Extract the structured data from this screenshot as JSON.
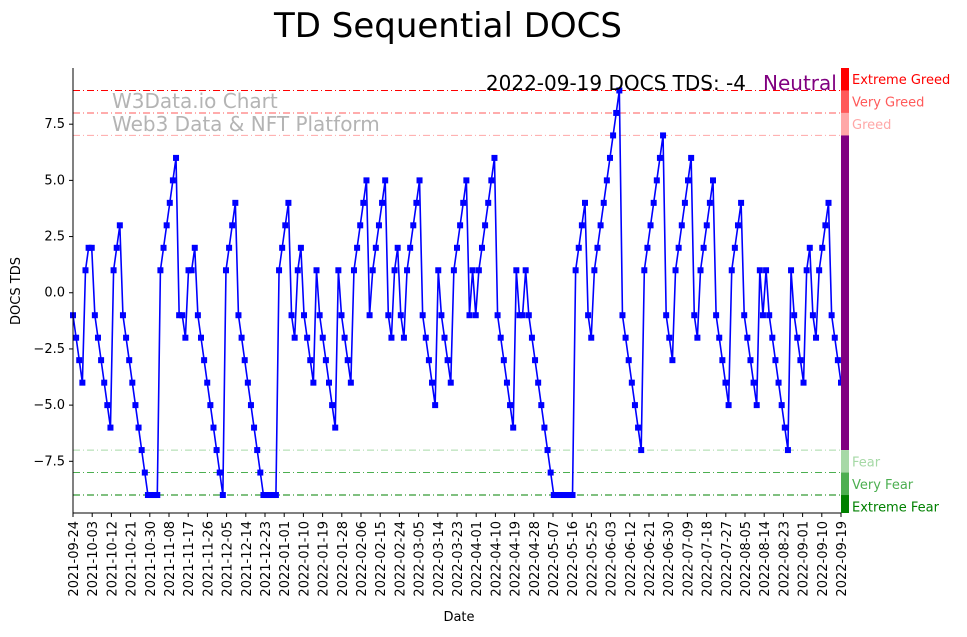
{
  "chart_data": {
    "type": "line",
    "title": "TD Sequential DOCS",
    "xlabel": "Date",
    "ylabel": "DOCS TDS",
    "ylim": [
      -9.8,
      10
    ],
    "yticks": [
      -7.5,
      -5.0,
      -2.5,
      0.0,
      2.5,
      5.0,
      7.5
    ],
    "ytick_labels": [
      "−7.5",
      "−5.0",
      "−2.5",
      "0.0",
      "2.5",
      "5.0",
      "7.5"
    ],
    "x_start": "2021-09-24",
    "x_end": "2022-09-19",
    "xtick_labels": [
      "2021-09-24",
      "2021-10-03",
      "2021-10-12",
      "2021-10-21",
      "2021-10-30",
      "2021-11-08",
      "2021-11-17",
      "2021-11-26",
      "2021-12-05",
      "2021-12-14",
      "2021-12-23",
      "2022-01-01",
      "2022-01-10",
      "2022-01-19",
      "2022-01-28",
      "2022-02-06",
      "2022-02-15",
      "2022-02-24",
      "2022-03-05",
      "2022-03-14",
      "2022-03-23",
      "2022-04-01",
      "2022-04-10",
      "2022-04-19",
      "2022-04-28",
      "2022-05-07",
      "2022-05-16",
      "2022-05-25",
      "2022-06-03",
      "2022-06-12",
      "2022-06-21",
      "2022-06-30",
      "2022-07-09",
      "2022-07-18",
      "2022-07-27",
      "2022-08-05",
      "2022-08-14",
      "2022-08-23",
      "2022-09-01",
      "2022-09-10",
      "2022-09-19"
    ],
    "series": [
      {
        "color": "#0000ff",
        "marker": "square",
        "values": [
          -1,
          -2,
          -3,
          -4,
          1,
          2,
          2,
          -1,
          -2,
          -3,
          -4,
          -5,
          -6,
          1,
          2,
          3,
          -1,
          -2,
          -3,
          -4,
          -5,
          -6,
          -7,
          -8,
          -9,
          -9,
          -9,
          -9,
          1,
          2,
          3,
          4,
          5,
          6,
          -1,
          -1,
          -2,
          1,
          1,
          2,
          -1,
          -2,
          -3,
          -4,
          -5,
          -6,
          -7,
          -8,
          -9,
          1,
          2,
          3,
          4,
          -1,
          -2,
          -3,
          -4,
          -5,
          -6,
          -7,
          -8,
          -9,
          -9,
          -9,
          -9,
          -9,
          1,
          2,
          3,
          4,
          -1,
          -2,
          1,
          2,
          -1,
          -2,
          -3,
          -4,
          1,
          -1,
          -2,
          -3,
          -4,
          -5,
          -6,
          1,
          -1,
          -2,
          -3,
          -4,
          1,
          2,
          3,
          4,
          5,
          -1,
          1,
          2,
          3,
          4,
          5,
          -1,
          -2,
          1,
          2,
          -1,
          -2,
          1,
          2,
          3,
          4,
          5,
          -1,
          -2,
          -3,
          -4,
          -5,
          1,
          -1,
          -2,
          -3,
          -4,
          1,
          2,
          3,
          4,
          5,
          -1,
          1,
          -1,
          1,
          2,
          3,
          4,
          5,
          6,
          -1,
          -2,
          -3,
          -4,
          -5,
          -6,
          1,
          -1,
          -1,
          1,
          -1,
          -2,
          -3,
          -4,
          -5,
          -6,
          -7,
          -8,
          -9,
          -9,
          -9,
          -9,
          -9,
          -9,
          -9,
          1,
          2,
          3,
          4,
          -1,
          -2,
          1,
          2,
          3,
          4,
          5,
          6,
          7,
          8,
          9,
          -1,
          -2,
          -3,
          -4,
          -5,
          -6,
          -7,
          1,
          2,
          3,
          4,
          5,
          6,
          7,
          -1,
          -2,
          -3,
          1,
          2,
          3,
          4,
          5,
          6,
          -1,
          -2,
          1,
          2,
          3,
          4,
          5,
          -1,
          -2,
          -3,
          -4,
          -5,
          1,
          2,
          3,
          4,
          -1,
          -2,
          -3,
          -4,
          -5,
          1,
          -1,
          1,
          -1,
          -2,
          -3,
          -4,
          -5,
          -6,
          -7,
          1,
          -1,
          -2,
          -3,
          -4,
          1,
          2,
          -1,
          -2,
          1,
          2,
          3,
          4,
          -1,
          -2,
          -3,
          -4
        ]
      }
    ],
    "grid": false,
    "zones": [
      {
        "label": "Extreme Greed",
        "level": 9,
        "color": "#ff0000"
      },
      {
        "label": "Very Greed",
        "level": 8,
        "color": "#ff5a5a"
      },
      {
        "label": "Greed",
        "level": 7,
        "color": "#ffa7a7"
      },
      {
        "label": "Fear",
        "level": -7,
        "color": "#a6d9a6"
      },
      {
        "label": "Very Fear",
        "level": -8,
        "color": "#4caf50"
      },
      {
        "label": "Extreme Fear",
        "level": -9,
        "color": "#008000"
      }
    ],
    "neutral_color": "#800080",
    "annotation": {
      "text": "2022-09-19 DOCS TDS: -4",
      "status": "Neutral",
      "status_color": "#800080"
    },
    "watermark": {
      "line1": "W3Data.io Chart",
      "line2": "Web3 Data & NFT Platform"
    }
  }
}
